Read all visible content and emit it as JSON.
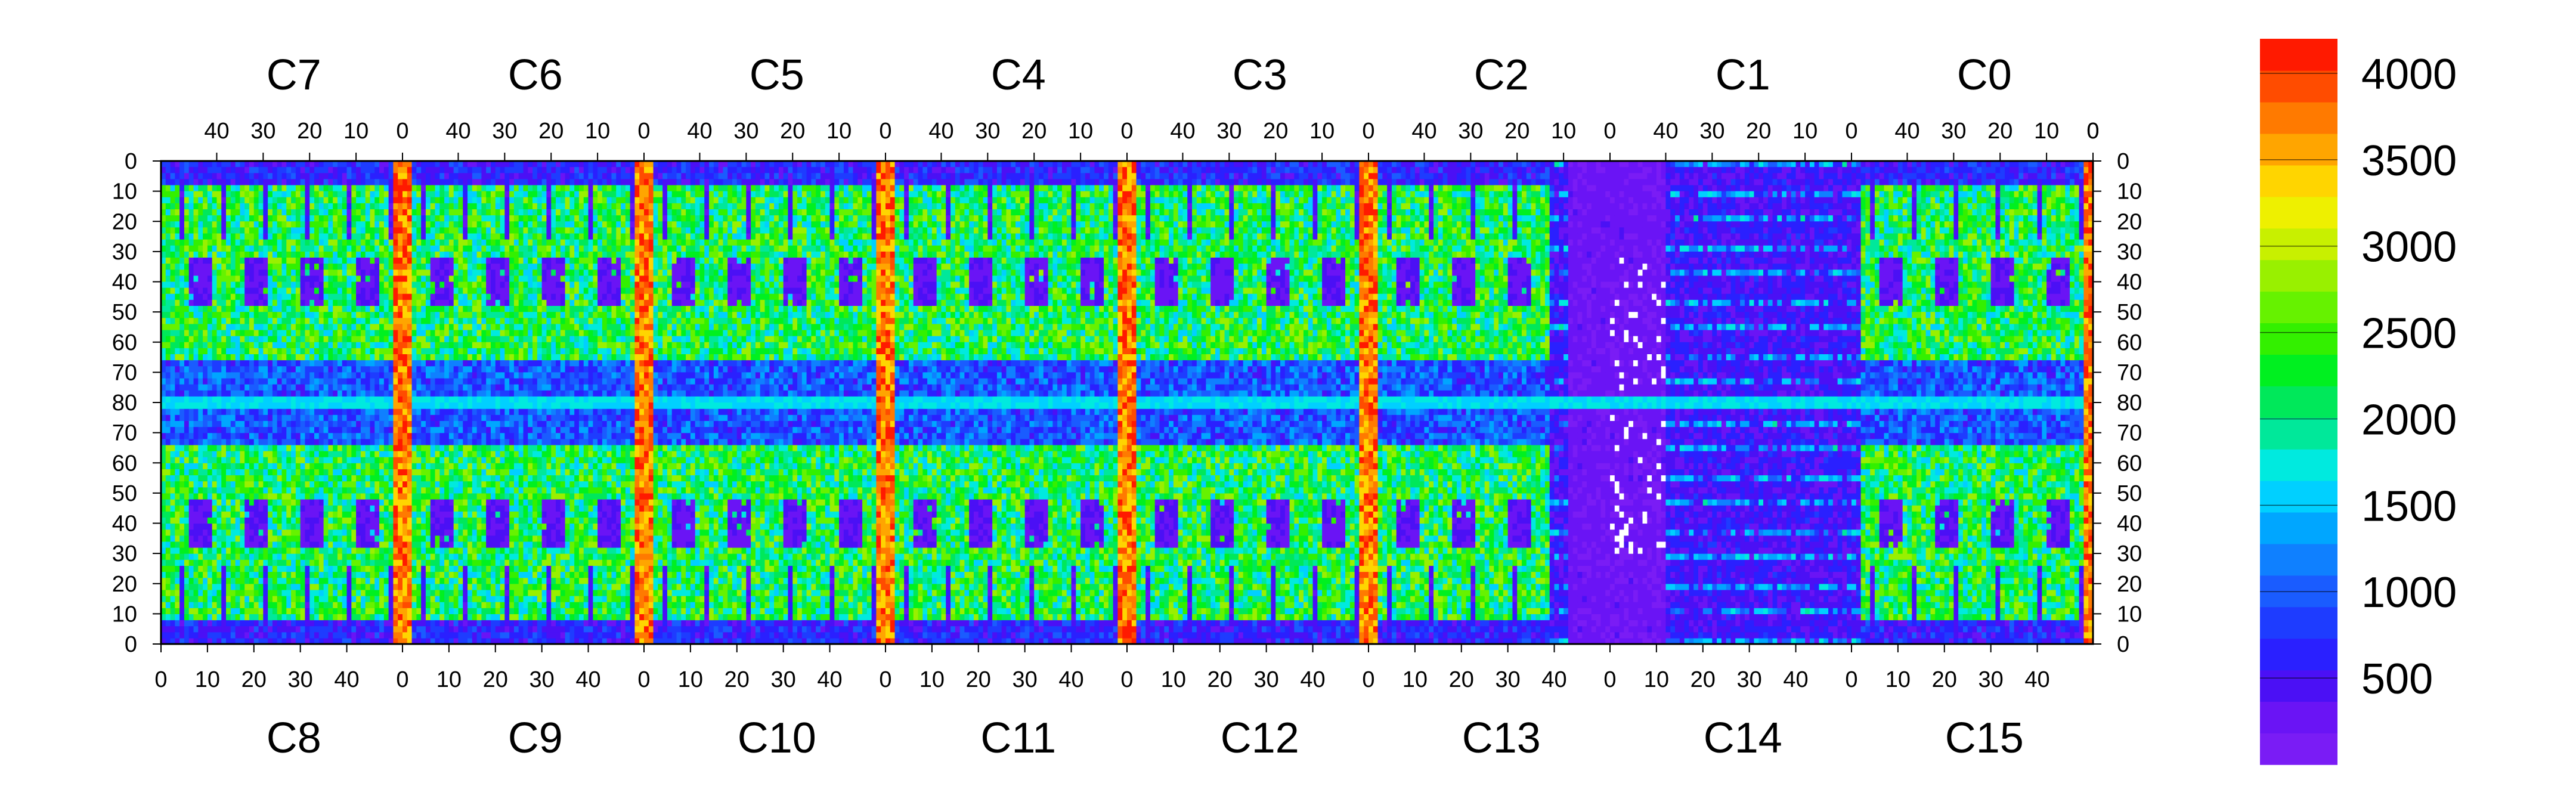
{
  "chart_data": {
    "type": "heatmap",
    "title": "",
    "xlabel": "",
    "ylabel": "",
    "top_chips": [
      "C7",
      "C6",
      "C5",
      "C4",
      "C3",
      "C2",
      "C1",
      "C0"
    ],
    "bottom_chips": [
      "C8",
      "C9",
      "C10",
      "C11",
      "C12",
      "C13",
      "C14",
      "C15"
    ],
    "columns_per_chip": 52,
    "rows_per_half": 80,
    "top_x_ticks": [
      40,
      30,
      20,
      10,
      0
    ],
    "bottom_x_ticks": [
      0,
      10,
      20,
      30,
      40
    ],
    "y_ticks_top": [
      0,
      10,
      20,
      30,
      40,
      50,
      60,
      70,
      80
    ],
    "y_ticks_bottom": [
      80,
      70,
      60,
      50,
      40,
      30,
      20,
      10,
      0
    ],
    "zlim": [
      0,
      4200
    ],
    "colorbar_ticks": [
      500,
      1000,
      1500,
      2000,
      2500,
      3000,
      3500,
      4000
    ],
    "colorbar_colors": [
      "#7a1cf5",
      "#6a14f5",
      "#4b10f5",
      "#2a20ff",
      "#1e3cff",
      "#1a5cff",
      "#0f80ff",
      "#00a6ff",
      "#00d0ff",
      "#00eadf",
      "#00e89a",
      "#00e85a",
      "#00f020",
      "#33f000",
      "#66f200",
      "#99f000",
      "#c8f000",
      "#eef000",
      "#ffd500",
      "#ffa500",
      "#ff7a00",
      "#ff4c00",
      "#ff1a00"
    ],
    "description_regions": {
      "low_value_band_chips": [
        "C13",
        "C14",
        "C15"
      ],
      "high_value_columns": "chip boundaries (column 0)"
    }
  }
}
